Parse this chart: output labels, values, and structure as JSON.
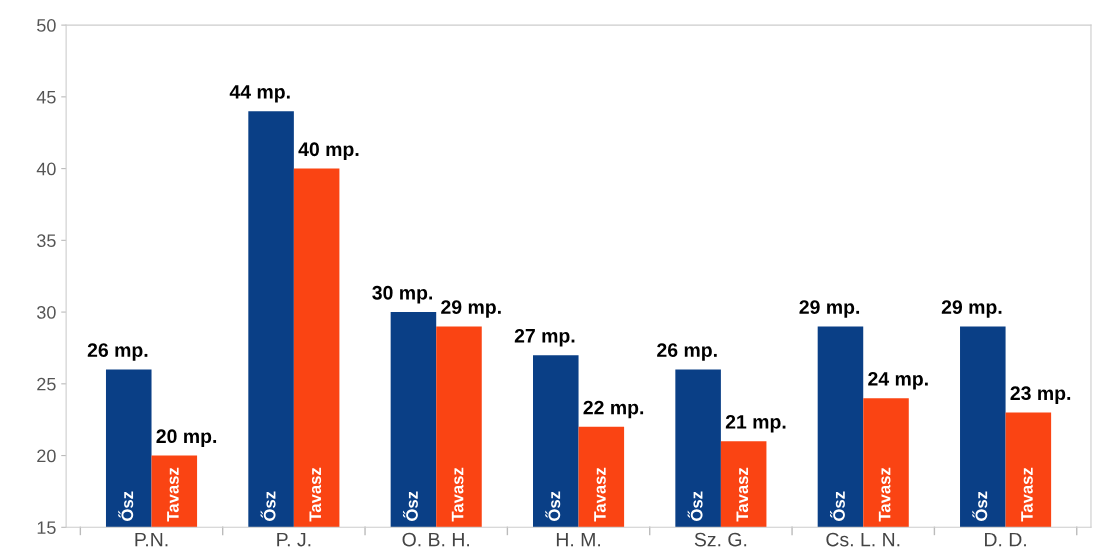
{
  "chart_data": {
    "type": "bar",
    "categories": [
      "P.N.",
      "P. J.",
      "O. B. H.",
      "H. M.",
      "Sz. G.",
      "Cs. L. N.",
      "D. D."
    ],
    "series": [
      {
        "name": "Ősz",
        "color": "#0a3f86",
        "values": [
          26,
          44,
          30,
          27,
          26,
          29,
          29
        ],
        "value_labels": [
          "26 mp.",
          "44 mp.",
          "30 mp.",
          "27 mp.",
          "26 mp.",
          "29 mp.",
          "29 mp."
        ]
      },
      {
        "name": "Tavasz",
        "color": "#fa4413",
        "values": [
          20,
          40,
          29,
          22,
          21,
          24,
          23
        ],
        "value_labels": [
          "20 mp.",
          "40 mp.",
          "29 mp.",
          "22 mp.",
          "21 mp.",
          "24 mp.",
          "23 mp."
        ]
      }
    ],
    "ylim": [
      15,
      50
    ],
    "yticks": [
      15,
      20,
      25,
      30,
      35,
      40,
      45,
      50
    ],
    "grid": false,
    "legend": false
  }
}
